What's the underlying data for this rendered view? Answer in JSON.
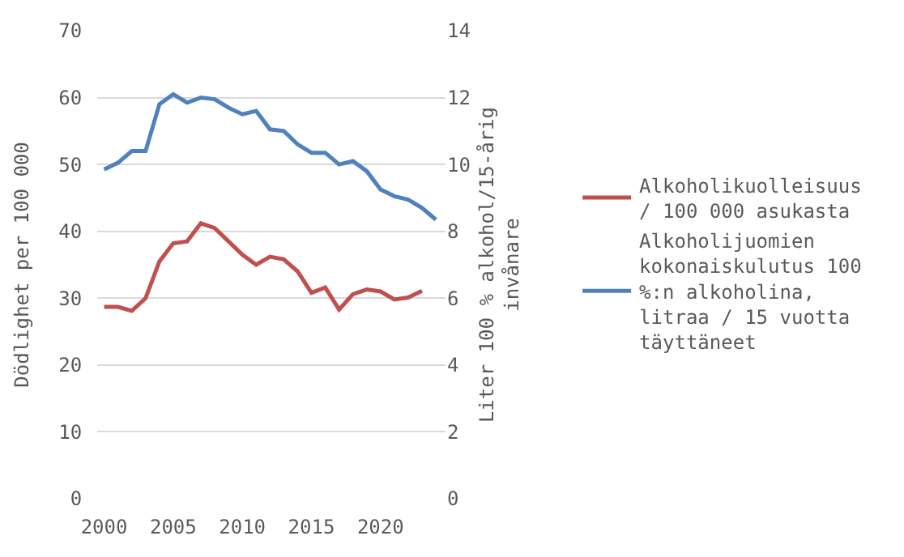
{
  "chart_data": {
    "type": "line",
    "ylabel": "Dödlighet per 100 000",
    "y2label": "Liter 100 % alkohol/15-årig invånare",
    "x": [
      2000,
      2001,
      2002,
      2003,
      2004,
      2005,
      2006,
      2007,
      2008,
      2009,
      2010,
      2011,
      2012,
      2013,
      2014,
      2015,
      2016,
      2017,
      2018,
      2019,
      2020,
      2021,
      2022,
      2023,
      2024
    ],
    "series": [
      {
        "name": "Alkoholikuolleisuus  / 100 000 asukasta",
        "color": "#c0504d",
        "values": [
          28.7,
          28.7,
          28.1,
          30,
          35.5,
          38.2,
          38.5,
          41.2,
          40.5,
          38.5,
          36.5,
          35,
          36.2,
          35.8,
          34,
          30.8,
          31.6,
          28.3,
          30.6,
          31.3,
          31,
          29.8,
          30.1,
          31.1,
          null
        ]
      },
      {
        "name": "Alkoholijuomien kokonaiskulutus 100 %:n alkoholina, litraa / 15 vuotta täyttäneet",
        "color": "#4f81bd",
        "axis": "y2",
        "values": [
          9.85,
          10.05,
          10.4,
          10.4,
          11.8,
          12.1,
          11.85,
          12.0,
          11.95,
          11.7,
          11.5,
          11.6,
          11.05,
          11.0,
          10.6,
          10.35,
          10.35,
          10.0,
          10.1,
          9.8,
          9.25,
          9.05,
          8.95,
          8.7,
          8.35
        ]
      }
    ],
    "xlim": [
      1999.5,
      2024.7
    ],
    "xticks": [
      2000,
      2005,
      2010,
      2015,
      2020
    ],
    "ylim": [
      0,
      70
    ],
    "yticks": [
      0,
      10,
      20,
      30,
      40,
      50,
      60,
      70
    ],
    "y2lim": [
      0,
      14
    ],
    "y2ticks": [
      0,
      2,
      4,
      6,
      8,
      10,
      12,
      14
    ],
    "grid": "y",
    "legend": "right",
    "line_style": "solid",
    "marker": "none"
  }
}
